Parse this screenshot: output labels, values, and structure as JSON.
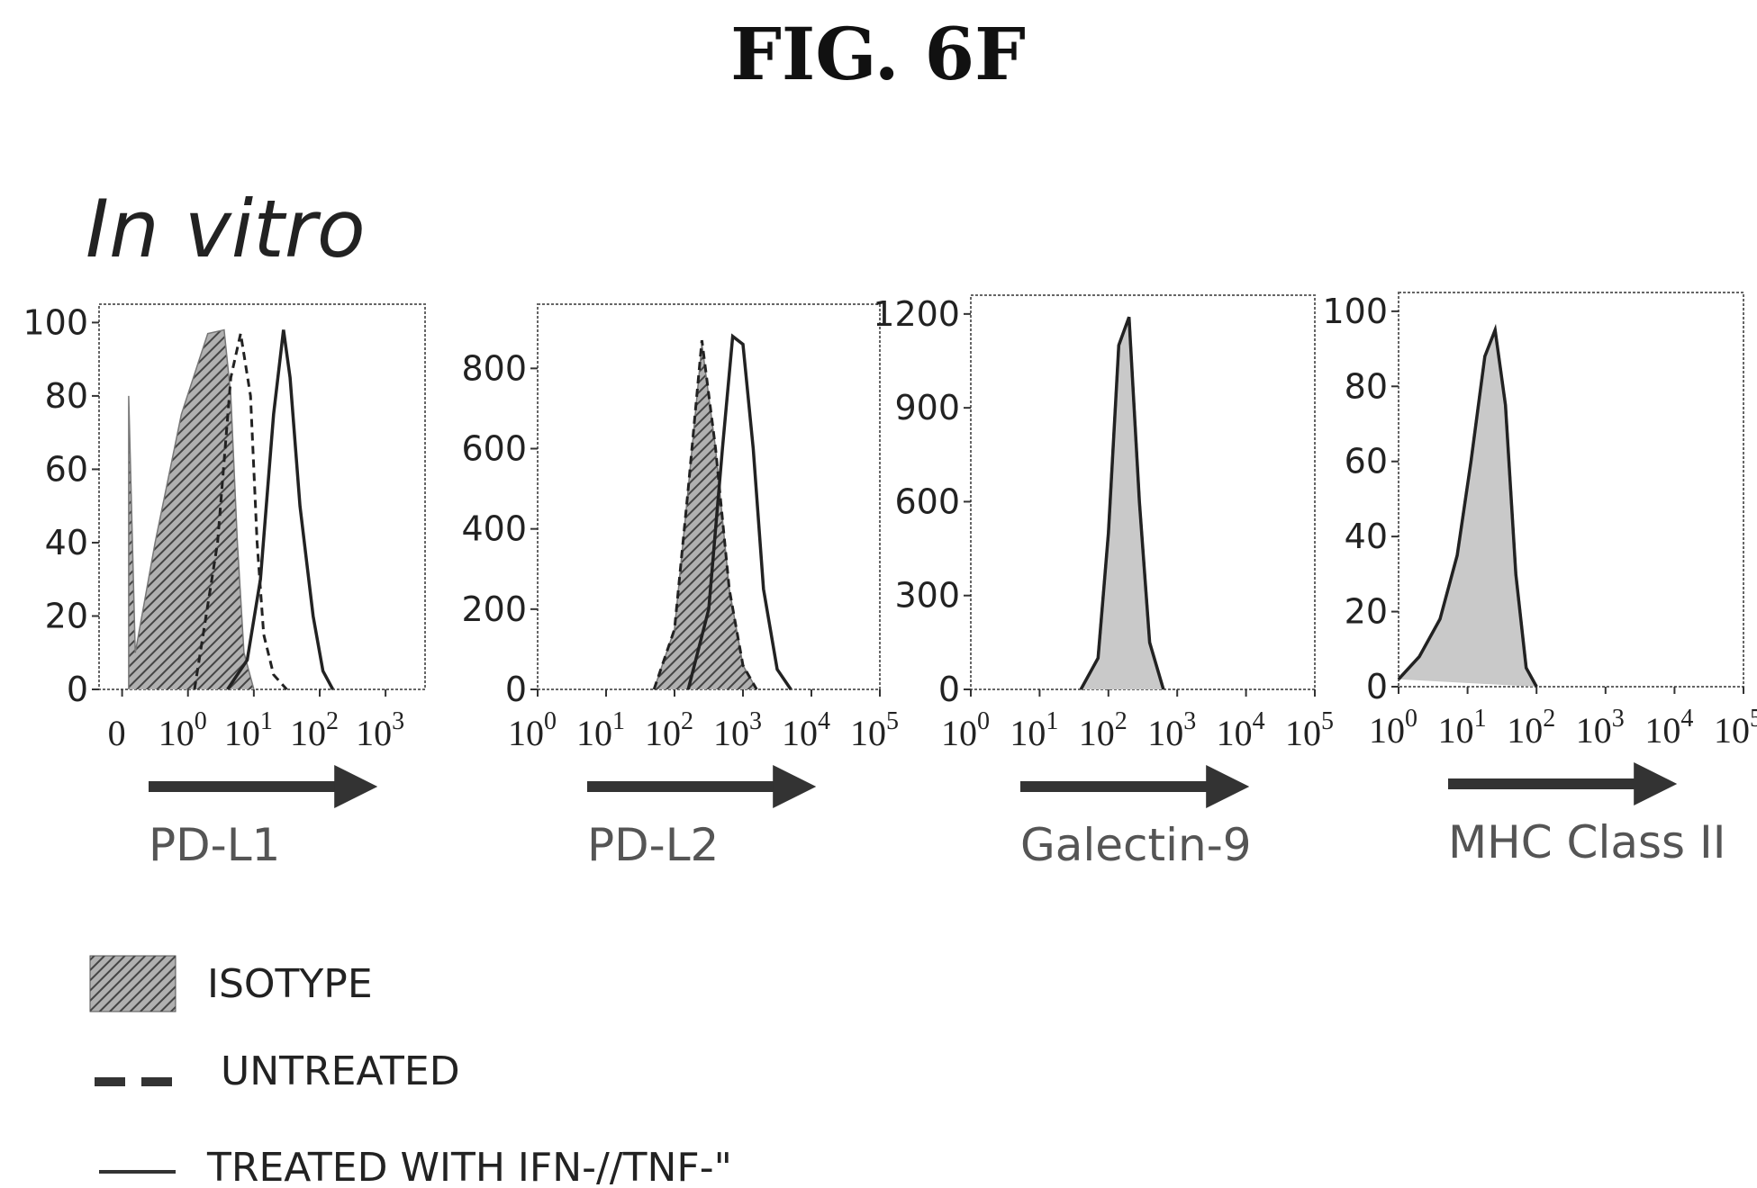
{
  "figure_title": "FIG. 6F",
  "section_title": "In vitro",
  "legend": [
    {
      "label": "ISOTYPE",
      "style": "hatched-fill"
    },
    {
      "label": "UNTREATED",
      "style": "dashed"
    },
    {
      "label": "TREATED WITH IFN-//TNF-\"",
      "style": "solid"
    }
  ],
  "colors": {
    "ink": "#222222",
    "isotype_fill": "#8a8a8a",
    "shaded_fill": "#c9c9c9"
  },
  "chart_data": [
    {
      "type": "area",
      "xlabel": "PD-L1",
      "xscale": "log",
      "xrange_log": [
        -1.35,
        3.6
      ],
      "xticks": [
        {
          "text": "0",
          "sup": "",
          "log": -1.0
        },
        {
          "text": "10",
          "sup": "0",
          "log": 0
        },
        {
          "text": "10",
          "sup": "1",
          "log": 1
        },
        {
          "text": "10",
          "sup": "2",
          "log": 2
        },
        {
          "text": "10",
          "sup": "3",
          "log": 3
        }
      ],
      "yticks": [
        0,
        20,
        40,
        60,
        80,
        100
      ],
      "ylim": [
        0,
        105
      ],
      "series": [
        {
          "style": "isotype",
          "x_log": [
            -0.9,
            -0.9,
            -0.8,
            -0.5,
            -0.1,
            0.3,
            0.55,
            0.65,
            0.75,
            0.85,
            1.0
          ],
          "y": [
            0,
            80,
            10,
            40,
            75,
            97,
            98,
            80,
            40,
            10,
            0
          ]
        },
        {
          "style": "dashed",
          "x_log": [
            0.1,
            0.45,
            0.65,
            0.8,
            0.95,
            1.05,
            1.15,
            1.3,
            1.5
          ],
          "y": [
            0,
            40,
            85,
            97,
            80,
            40,
            15,
            4,
            0
          ]
        },
        {
          "style": "solid",
          "x_log": [
            0.6,
            0.9,
            1.1,
            1.3,
            1.45,
            1.55,
            1.7,
            1.9,
            2.05,
            2.2
          ],
          "y": [
            0,
            8,
            30,
            75,
            98,
            85,
            50,
            20,
            5,
            0
          ]
        }
      ]
    },
    {
      "type": "area",
      "xlabel": "PD-L2",
      "xscale": "log",
      "xrange_log": [
        0,
        5
      ],
      "xticks": [
        {
          "text": "10",
          "sup": "0",
          "log": 0
        },
        {
          "text": "10",
          "sup": "1",
          "log": 1
        },
        {
          "text": "10",
          "sup": "2",
          "log": 2
        },
        {
          "text": "10",
          "sup": "3",
          "log": 3
        },
        {
          "text": "10",
          "sup": "4",
          "log": 4
        },
        {
          "text": "10",
          "sup": "5",
          "log": 5
        }
      ],
      "yticks": [
        0,
        200,
        400,
        600,
        800
      ],
      "ylim": [
        0,
        960
      ],
      "series": [
        {
          "style": "isotype",
          "x_log": [
            1.7,
            2.0,
            2.2,
            2.4,
            2.6,
            2.8,
            3.0,
            3.2
          ],
          "y": [
            0,
            150,
            500,
            860,
            600,
            250,
            60,
            0
          ]
        },
        {
          "style": "dashed",
          "x_log": [
            1.7,
            2.0,
            2.2,
            2.4,
            2.6,
            2.8,
            3.0,
            3.2
          ],
          "y": [
            0,
            150,
            500,
            870,
            600,
            250,
            60,
            0
          ]
        },
        {
          "style": "solid",
          "x_log": [
            2.2,
            2.5,
            2.7,
            2.85,
            3.0,
            3.15,
            3.3,
            3.5,
            3.7
          ],
          "y": [
            0,
            200,
            600,
            880,
            860,
            600,
            250,
            50,
            0
          ]
        }
      ]
    },
    {
      "type": "area",
      "xlabel": "Galectin-9",
      "xscale": "log",
      "xrange_log": [
        0,
        5
      ],
      "xticks": [
        {
          "text": "10",
          "sup": "0",
          "log": 0
        },
        {
          "text": "10",
          "sup": "1",
          "log": 1
        },
        {
          "text": "10",
          "sup": "2",
          "log": 2
        },
        {
          "text": "10",
          "sup": "3",
          "log": 3
        },
        {
          "text": "10",
          "sup": "4",
          "log": 4
        },
        {
          "text": "10",
          "sup": "5",
          "log": 5
        }
      ],
      "yticks": [
        0,
        300,
        600,
        900,
        1200
      ],
      "ylim": [
        0,
        1260
      ],
      "series": [
        {
          "style": "shaded",
          "x_log": [
            1.6,
            1.85,
            2.0,
            2.15,
            2.3,
            2.45,
            2.6,
            2.8
          ],
          "y": [
            0,
            100,
            500,
            1100,
            1190,
            600,
            150,
            0
          ]
        },
        {
          "style": "dashed",
          "x_log": [
            1.6,
            1.85,
            2.0,
            2.15,
            2.3,
            2.45,
            2.6,
            2.8
          ],
          "y": [
            0,
            100,
            500,
            1100,
            1190,
            600,
            150,
            0
          ]
        },
        {
          "style": "solid",
          "x_log": [
            1.6,
            1.85,
            2.0,
            2.15,
            2.3,
            2.45,
            2.6,
            2.8
          ],
          "y": [
            0,
            100,
            500,
            1100,
            1190,
            600,
            150,
            0
          ]
        }
      ]
    },
    {
      "type": "area",
      "xlabel": "MHC Class II",
      "xscale": "log",
      "xrange_log": [
        0,
        5
      ],
      "xticks": [
        {
          "text": "10",
          "sup": "0",
          "log": 0
        },
        {
          "text": "10",
          "sup": "1",
          "log": 1
        },
        {
          "text": "10",
          "sup": "2",
          "log": 2
        },
        {
          "text": "10",
          "sup": "3",
          "log": 3
        },
        {
          "text": "10",
          "sup": "4",
          "log": 4
        },
        {
          "text": "10",
          "sup": "5",
          "log": 5
        }
      ],
      "yticks": [
        0,
        20,
        40,
        60,
        80,
        100
      ],
      "ylim": [
        0,
        105
      ],
      "series": [
        {
          "style": "shaded",
          "x_log": [
            0.0,
            0.3,
            0.6,
            0.85,
            1.05,
            1.25,
            1.4,
            1.55,
            1.7,
            1.85,
            2.0
          ],
          "y": [
            2,
            8,
            18,
            35,
            60,
            88,
            95,
            75,
            30,
            5,
            0
          ]
        },
        {
          "style": "dashed",
          "x_log": [
            0.0,
            0.3,
            0.6,
            0.85,
            1.05,
            1.25,
            1.4,
            1.55,
            1.7,
            1.85,
            2.0
          ],
          "y": [
            2,
            8,
            18,
            35,
            60,
            88,
            95,
            75,
            30,
            5,
            0
          ]
        },
        {
          "style": "solid",
          "x_log": [
            0.0,
            0.3,
            0.6,
            0.85,
            1.05,
            1.25,
            1.4,
            1.55,
            1.7,
            1.85,
            2.0
          ],
          "y": [
            2,
            8,
            18,
            35,
            60,
            88,
            95,
            75,
            30,
            5,
            0
          ]
        }
      ]
    }
  ]
}
